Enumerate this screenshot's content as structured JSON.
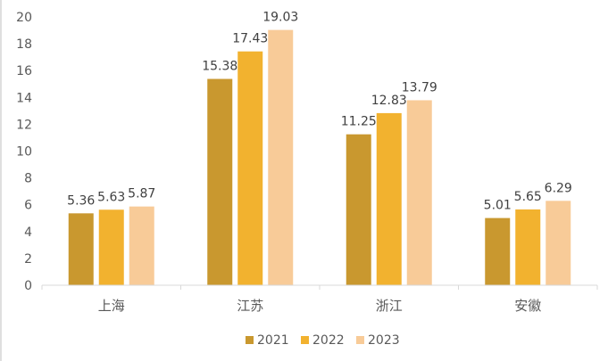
{
  "chart_data": {
    "type": "bar",
    "categories": [
      "上海",
      "江苏",
      "浙江",
      "安徽"
    ],
    "series": [
      {
        "name": "2021",
        "values": [
          5.36,
          15.38,
          11.25,
          5.01
        ],
        "color": "#C9982F"
      },
      {
        "name": "2022",
        "values": [
          5.63,
          17.43,
          12.83,
          5.65
        ],
        "color": "#F2B22F"
      },
      {
        "name": "2023",
        "values": [
          5.87,
          19.03,
          13.79,
          6.29
        ],
        "color": "#F8CB98"
      }
    ],
    "ylim": [
      0,
      20
    ],
    "yticks": [
      0,
      2,
      4,
      6,
      8,
      10,
      12,
      14,
      16,
      18,
      20
    ],
    "grid": false,
    "legend": "bottom-center",
    "data_labels": true
  },
  "colors": {
    "axis": "#D9D9D9",
    "text": "#595959",
    "label": "#404040"
  }
}
